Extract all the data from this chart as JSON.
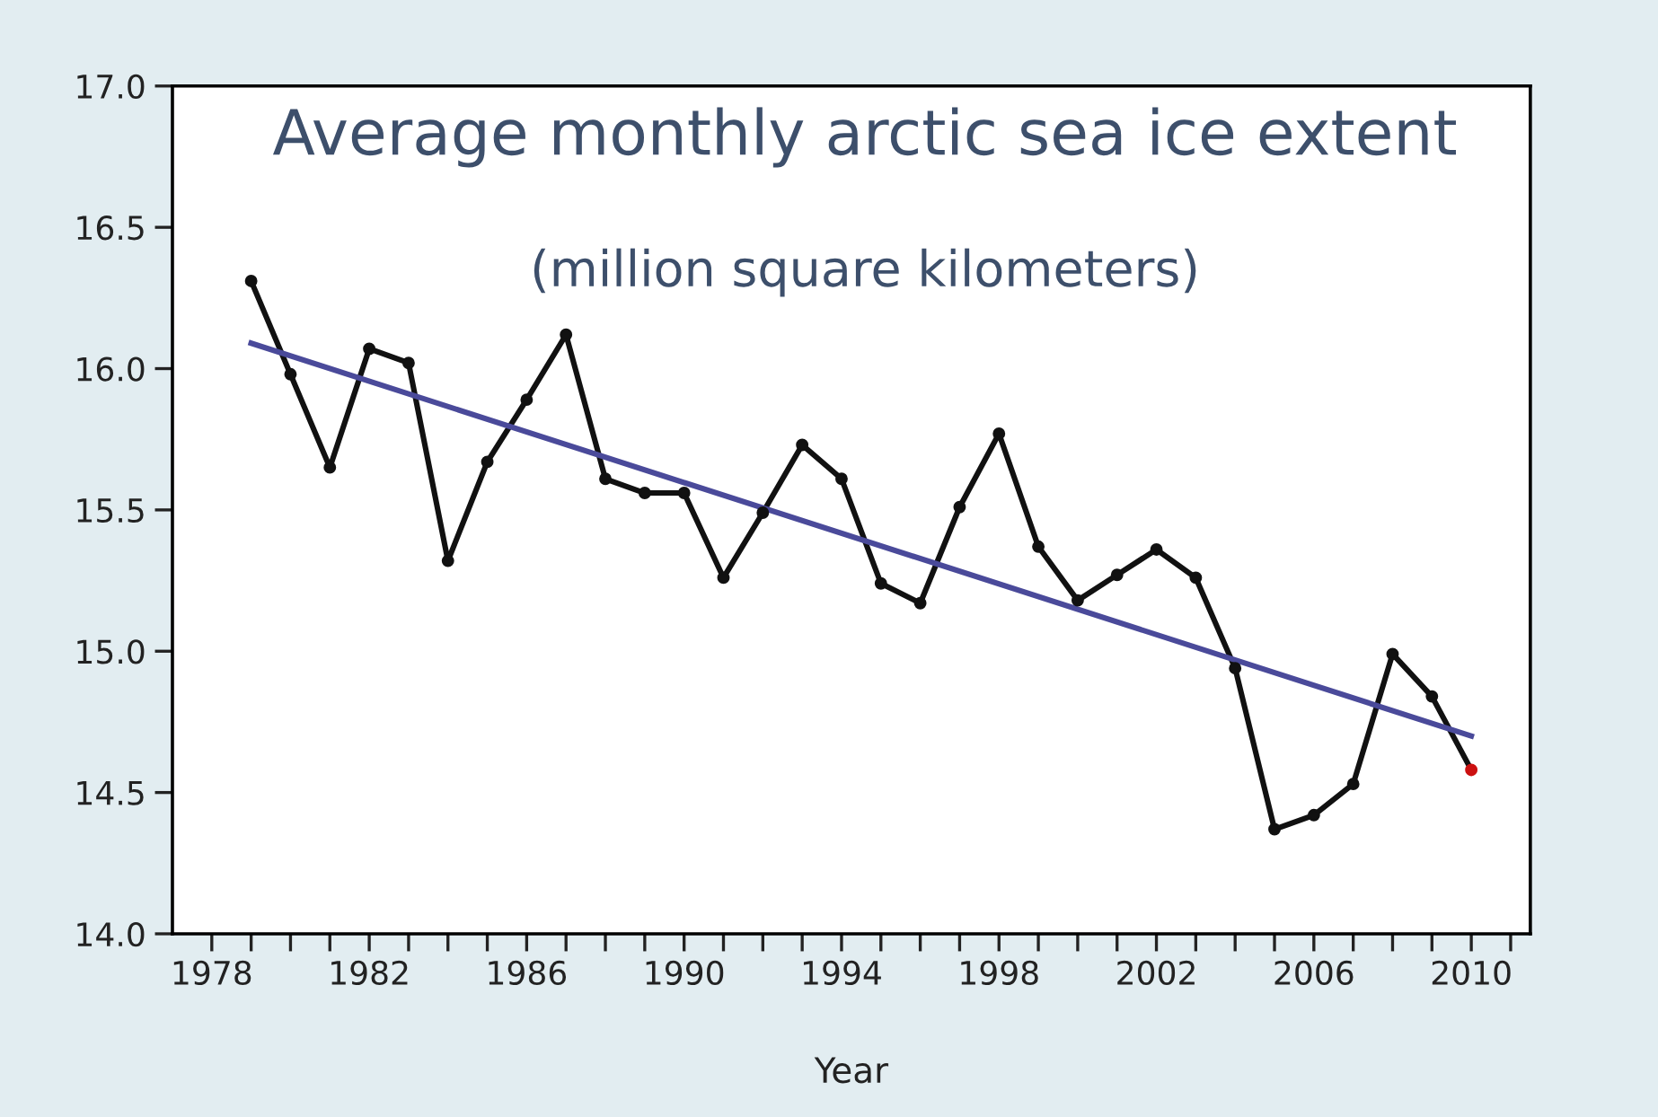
{
  "chart_data": {
    "type": "line",
    "title": "Average monthly arctic sea ice extent",
    "subtitle": "(million square kilometers)",
    "xlabel": "Year",
    "xlim": [
      1977,
      2011.5
    ],
    "ylim": [
      14.0,
      17.0
    ],
    "xticks": [
      1978,
      {
        "value": 1979,
        "label": null
      },
      {
        "value": 1980,
        "label": null
      },
      {
        "value": 1981,
        "label": null
      },
      1982,
      {
        "value": 1983,
        "label": null
      },
      {
        "value": 1984,
        "label": null
      },
      {
        "value": 1985,
        "label": null
      },
      1986,
      {
        "value": 1987,
        "label": null
      },
      {
        "value": 1988,
        "label": null
      },
      {
        "value": 1989,
        "label": null
      },
      1990,
      {
        "value": 1991,
        "label": null
      },
      {
        "value": 1992,
        "label": null
      },
      {
        "value": 1993,
        "label": null
      },
      1994,
      {
        "value": 1995,
        "label": null
      },
      {
        "value": 1996,
        "label": null
      },
      {
        "value": 1997,
        "label": null
      },
      1998,
      {
        "value": 1999,
        "label": null
      },
      {
        "value": 2000,
        "label": null
      },
      {
        "value": 2001,
        "label": null
      },
      2002,
      {
        "value": 2003,
        "label": null
      },
      {
        "value": 2004,
        "label": null
      },
      {
        "value": 2005,
        "label": null
      },
      2006,
      {
        "value": 2007,
        "label": null
      },
      {
        "value": 2008,
        "label": null
      },
      {
        "value": 2009,
        "label": null
      },
      2010,
      {
        "value": 2011,
        "label": null
      }
    ],
    "yticks": [
      {
        "value": 14.0,
        "label": "14.0"
      },
      14.5,
      {
        "value": 15.0,
        "label": "15.0"
      },
      15.5,
      {
        "value": 16.0,
        "label": "16.0"
      },
      16.5,
      {
        "value": 17.0,
        "label": "17.0"
      }
    ],
    "grid": false,
    "legend": false,
    "series": [
      {
        "marker": "circle",
        "color": "#111111",
        "x": [
          1979,
          1980,
          1981,
          1982,
          1983,
          1984,
          1985,
          1986,
          1987,
          1988,
          1989,
          1990,
          1991,
          1992,
          1993,
          1994,
          1995,
          1996,
          1997,
          1998,
          1999,
          2000,
          2001,
          2002,
          2003,
          2004,
          2005,
          2006,
          2007,
          2008,
          2009,
          2010
        ],
        "values": [
          16.31,
          15.98,
          15.65,
          16.07,
          16.02,
          15.32,
          15.67,
          15.89,
          16.12,
          15.61,
          15.56,
          15.56,
          15.26,
          15.49,
          15.73,
          15.61,
          15.24,
          15.17,
          15.51,
          15.77,
          15.37,
          15.18,
          15.27,
          15.36,
          15.26,
          14.94,
          14.37,
          14.42,
          14.53,
          14.99,
          14.84,
          14.58
        ],
        "colors": [
          "#111111",
          "#111111",
          "#111111",
          "#111111",
          "#111111",
          "#111111",
          "#111111",
          "#111111",
          "#111111",
          "#111111",
          "#111111",
          "#111111",
          "#111111",
          "#111111",
          "#111111",
          "#111111",
          "#111111",
          "#111111",
          "#111111",
          "#111111",
          "#111111",
          "#111111",
          "#111111",
          "#111111",
          "#111111",
          "#111111",
          "#111111",
          "#111111",
          "#111111",
          "#111111",
          "#111111",
          "#cc1111"
        ]
      },
      {
        "marker": "none",
        "color": "#4a4a9a",
        "x": [
          1979,
          2010
        ],
        "values": [
          16.09,
          14.7
        ]
      }
    ]
  }
}
